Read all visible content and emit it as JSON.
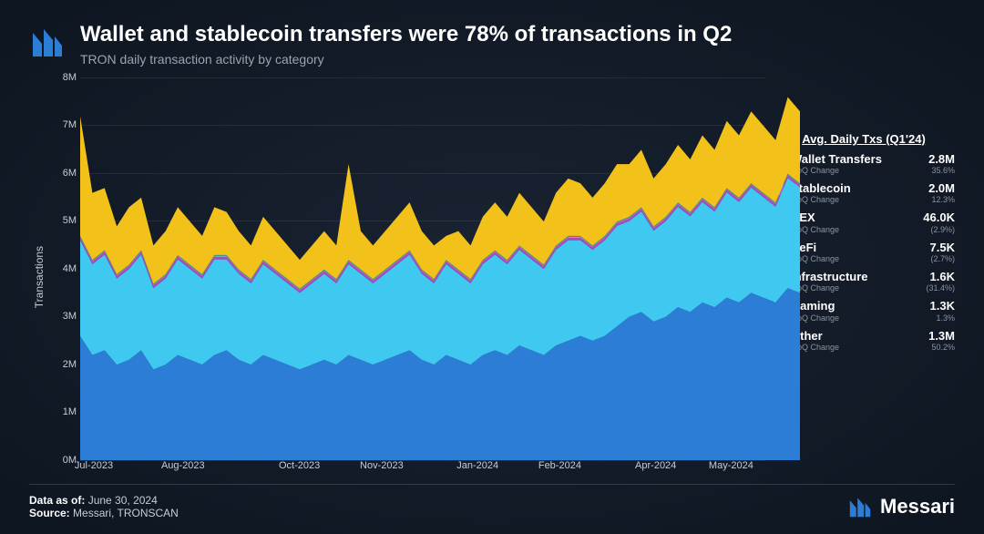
{
  "header": {
    "title": "Wallet and stablecoin transfers were 78% of transactions in Q2",
    "subtitle": "TRON daily transaction activity by category"
  },
  "chart": {
    "type": "stacked-area",
    "yaxis": {
      "label": "Transactions",
      "min": 0,
      "max": 8,
      "tick_step": 1,
      "tick_suffix": "M"
    },
    "xaxis": {
      "labels": [
        "Jul-2023",
        "Aug-2023",
        "Oct-2023",
        "Nov-2023",
        "Jan-2024",
        "Feb-2024",
        "Apr-2024",
        "May-2024"
      ],
      "positions_pct": [
        2,
        15,
        32,
        44,
        58,
        70,
        84,
        95
      ]
    },
    "grid_color": "rgba(255,255,255,0.08)",
    "background_color": "transparent",
    "series": [
      {
        "name": "Wallet Transfers",
        "color": "#2b7dd6",
        "values": [
          2.6,
          2.2,
          2.3,
          2.0,
          2.1,
          2.3,
          1.9,
          2.0,
          2.2,
          2.1,
          2.0,
          2.2,
          2.3,
          2.1,
          2.0,
          2.2,
          2.1,
          2.0,
          1.9,
          2.0,
          2.1,
          2.0,
          2.2,
          2.1,
          2.0,
          2.1,
          2.2,
          2.3,
          2.1,
          2.0,
          2.2,
          2.1,
          2.0,
          2.2,
          2.3,
          2.2,
          2.4,
          2.3,
          2.2,
          2.4,
          2.5,
          2.6,
          2.5,
          2.6,
          2.8,
          3.0,
          3.1,
          2.9,
          3.0,
          3.2,
          3.1,
          3.3,
          3.2,
          3.4,
          3.3,
          3.5,
          3.4,
          3.3,
          3.6,
          3.5
        ]
      },
      {
        "name": "Stablecoin",
        "color": "#3fc8f0",
        "values": [
          2.0,
          1.9,
          2.0,
          1.8,
          1.9,
          2.0,
          1.7,
          1.8,
          2.0,
          1.9,
          1.8,
          2.0,
          1.9,
          1.8,
          1.7,
          1.9,
          1.8,
          1.7,
          1.6,
          1.7,
          1.8,
          1.7,
          1.9,
          1.8,
          1.7,
          1.8,
          1.9,
          2.0,
          1.8,
          1.7,
          1.9,
          1.8,
          1.7,
          1.9,
          2.0,
          1.9,
          2.0,
          1.9,
          1.8,
          2.0,
          2.1,
          2.0,
          1.9,
          2.0,
          2.1,
          2.0,
          2.1,
          1.9,
          2.0,
          2.1,
          2.0,
          2.1,
          2.0,
          2.2,
          2.1,
          2.2,
          2.1,
          2.0,
          2.3,
          2.2
        ]
      },
      {
        "name": "CEX",
        "color": "#a04fc0",
        "values": [
          0.05,
          0.05,
          0.05,
          0.05,
          0.05,
          0.05,
          0.05,
          0.05,
          0.05,
          0.05,
          0.05,
          0.05,
          0.05,
          0.05,
          0.05,
          0.05,
          0.05,
          0.05,
          0.05,
          0.05,
          0.05,
          0.05,
          0.05,
          0.05,
          0.05,
          0.05,
          0.05,
          0.05,
          0.05,
          0.05,
          0.05,
          0.05,
          0.05,
          0.05,
          0.05,
          0.05,
          0.05,
          0.05,
          0.05,
          0.05,
          0.05,
          0.05,
          0.05,
          0.05,
          0.05,
          0.05,
          0.05,
          0.05,
          0.05,
          0.05,
          0.05,
          0.05,
          0.05,
          0.05,
          0.05,
          0.05,
          0.05,
          0.05,
          0.05,
          0.05
        ]
      },
      {
        "name": "DeFi",
        "color": "#e86fc8",
        "values": [
          0.02,
          0.02,
          0.02,
          0.02,
          0.02,
          0.02,
          0.02,
          0.02,
          0.02,
          0.02,
          0.02,
          0.02,
          0.02,
          0.02,
          0.02,
          0.02,
          0.02,
          0.02,
          0.02,
          0.02,
          0.02,
          0.02,
          0.02,
          0.02,
          0.02,
          0.02,
          0.02,
          0.02,
          0.02,
          0.02,
          0.02,
          0.02,
          0.02,
          0.02,
          0.02,
          0.02,
          0.02,
          0.02,
          0.02,
          0.02,
          0.02,
          0.02,
          0.02,
          0.02,
          0.02,
          0.02,
          0.02,
          0.02,
          0.02,
          0.02,
          0.02,
          0.02,
          0.02,
          0.02,
          0.02,
          0.02,
          0.02,
          0.02,
          0.02,
          0.02
        ]
      },
      {
        "name": "Infrastructure",
        "color": "#18a862",
        "values": [
          0.01,
          0.01,
          0.01,
          0.01,
          0.01,
          0.01,
          0.01,
          0.01,
          0.01,
          0.01,
          0.01,
          0.01,
          0.01,
          0.01,
          0.01,
          0.01,
          0.01,
          0.01,
          0.01,
          0.01,
          0.01,
          0.01,
          0.01,
          0.01,
          0.01,
          0.01,
          0.01,
          0.01,
          0.01,
          0.01,
          0.01,
          0.01,
          0.01,
          0.01,
          0.01,
          0.01,
          0.01,
          0.01,
          0.01,
          0.01,
          0.01,
          0.01,
          0.01,
          0.01,
          0.01,
          0.01,
          0.01,
          0.01,
          0.01,
          0.01,
          0.01,
          0.01,
          0.01,
          0.01,
          0.01,
          0.01,
          0.01,
          0.01,
          0.01,
          0.01
        ]
      },
      {
        "name": "Gaming",
        "color": "#4fe0b8",
        "values": [
          0.01,
          0.01,
          0.01,
          0.01,
          0.01,
          0.01,
          0.01,
          0.01,
          0.01,
          0.01,
          0.01,
          0.01,
          0.01,
          0.01,
          0.01,
          0.01,
          0.01,
          0.01,
          0.01,
          0.01,
          0.01,
          0.01,
          0.01,
          0.01,
          0.01,
          0.01,
          0.01,
          0.01,
          0.01,
          0.01,
          0.01,
          0.01,
          0.01,
          0.01,
          0.01,
          0.01,
          0.01,
          0.01,
          0.01,
          0.01,
          0.01,
          0.01,
          0.01,
          0.01,
          0.01,
          0.01,
          0.01,
          0.01,
          0.01,
          0.01,
          0.01,
          0.01,
          0.01,
          0.01,
          0.01,
          0.01,
          0.01,
          0.01,
          0.01,
          0.01
        ]
      },
      {
        "name": "Other",
        "color": "#f2c21a",
        "values": [
          2.5,
          1.4,
          1.3,
          1.0,
          1.2,
          1.1,
          0.8,
          0.9,
          1.0,
          0.9,
          0.8,
          1.0,
          0.9,
          0.8,
          0.7,
          0.9,
          0.8,
          0.7,
          0.6,
          0.7,
          0.8,
          0.7,
          2.0,
          0.8,
          0.7,
          0.8,
          0.9,
          1.0,
          0.8,
          0.7,
          0.5,
          0.8,
          0.7,
          0.9,
          1.0,
          0.9,
          1.1,
          1.0,
          0.9,
          1.1,
          1.2,
          1.1,
          1.0,
          1.1,
          1.2,
          1.1,
          1.2,
          1.0,
          1.1,
          1.2,
          1.1,
          1.3,
          1.2,
          1.4,
          1.3,
          1.5,
          1.4,
          1.3,
          1.6,
          1.5
        ]
      }
    ]
  },
  "legend": {
    "header": "Avg. Daily Txs (Q1'24)",
    "sub_label": "QoQ Change",
    "items": [
      {
        "name": "Wallet Transfers",
        "color": "#2b7dd6",
        "value": "2.8M",
        "pct": "35.6%"
      },
      {
        "name": "Stablecoin",
        "color": "#3fc8f0",
        "value": "2.0M",
        "pct": "12.3%"
      },
      {
        "name": "CEX",
        "color": "#a04fc0",
        "value": "46.0K",
        "pct": "(2.9%)"
      },
      {
        "name": "DeFi",
        "color": "#e86fc8",
        "value": "7.5K",
        "pct": "(2.7%)"
      },
      {
        "name": "Infrastructure",
        "color": "#18a862",
        "value": "1.6K",
        "pct": "(31.4%)"
      },
      {
        "name": "Gaming",
        "color": "#4fe0b8",
        "value": "1.3K",
        "pct": "1.3%"
      },
      {
        "name": "Other",
        "color": "#f2c21a",
        "value": "1.3M",
        "pct": "50.2%"
      }
    ]
  },
  "footer": {
    "asof_label": "Data as of:",
    "asof_value": "June 30, 2024",
    "source_label": "Source:",
    "source_value": "Messari, TRONSCAN",
    "brand": "Messari"
  },
  "brand_color": "#2b7dd6"
}
